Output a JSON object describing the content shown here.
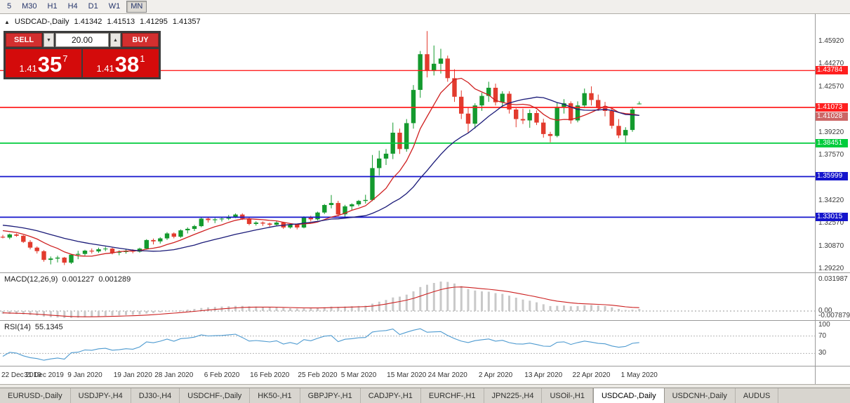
{
  "toolbar": {
    "timeframes": [
      "5",
      "M30",
      "H1",
      "H4",
      "D1",
      "W1",
      "MN"
    ],
    "active": "MN"
  },
  "icons": {
    "panel_toggle": "▲",
    "step_down": "▼",
    "step_up": "▲"
  },
  "chart_header": {
    "symbol_label": "USDCAD-,Daily",
    "open": "1.41342",
    "high": "1.41513",
    "low": "1.41295",
    "close": "1.41357"
  },
  "trade_panel": {
    "sell_label": "SELL",
    "buy_label": "BUY",
    "volume": "20.00",
    "sell_price": {
      "prefix": "1.41",
      "big": "35",
      "sup": "7"
    },
    "buy_price": {
      "prefix": "1.41",
      "big": "38",
      "sup": "1"
    }
  },
  "macd_panel": {
    "name": "MACD(12,26,9)",
    "main_value": "0.001227",
    "signal_value": "0.001289",
    "axis": [
      "0.031987",
      "0.00",
      "-0.007879"
    ]
  },
  "rsi_panel": {
    "name": "RSI(14)",
    "value": "55.1345",
    "axis": [
      "100",
      "70",
      "30"
    ]
  },
  "chart_data": {
    "type": "candlestick",
    "symbol": "USDCAD",
    "timeframe": "Daily",
    "y_axis_labels": [
      "1.45920",
      "1.44270",
      "1.42570",
      "1.40920",
      "1.39220",
      "1.37570",
      "1.35920",
      "1.34220",
      "1.32570",
      "1.30870",
      "1.29220"
    ],
    "x_labels": [
      {
        "text": "22 Dec 2019",
        "i": 0
      },
      {
        "text": "31 Dec 2019",
        "i": 6
      },
      {
        "text": "9 Jan 2020",
        "i": 12
      },
      {
        "text": "19 Jan 2020",
        "i": 19
      },
      {
        "text": "28 Jan 2020",
        "i": 25
      },
      {
        "text": "6 Feb 2020",
        "i": 32
      },
      {
        "text": "16 Feb 2020",
        "i": 39
      },
      {
        "text": "25 Feb 2020",
        "i": 46
      },
      {
        "text": "5 Mar 2020",
        "i": 52
      },
      {
        "text": "15 Mar 2020",
        "i": 59
      },
      {
        "text": "24 Mar 2020",
        "i": 65
      },
      {
        "text": "2 Apr 2020",
        "i": 72
      },
      {
        "text": "13 Apr 2020",
        "i": 79
      },
      {
        "text": "22 Apr 2020",
        "i": 86
      },
      {
        "text": "1 May 2020",
        "i": 93
      }
    ],
    "levels": [
      {
        "price": 1.43784,
        "color": "#ff1f1f",
        "tag": "1.43784",
        "w": 1.4
      },
      {
        "price": 1.41073,
        "color": "#ff1f1f",
        "tag": "1.41073",
        "w": 1.8
      },
      {
        "price": 1.41028,
        "color": "#cc6666",
        "tag": "1.41028",
        "tag_only": true,
        "tag_dy": 12
      },
      {
        "price": 1.38451,
        "color": "#00cc3c",
        "tag": "1.38451",
        "w": 1.8
      },
      {
        "price": 1.35999,
        "color": "#1414cc",
        "tag": "1.35999",
        "w": 1.8
      },
      {
        "price": 1.33015,
        "color": "#1414cc",
        "tag": "1.33015",
        "w": 1.8
      }
    ],
    "ma_fast_period": 8,
    "ma_slow_period": 20,
    "colors": {
      "up": "#149a2e",
      "down": "#e23b2e",
      "ma_fast": "#cf2020",
      "ma_slow": "#1a1a78"
    },
    "seed_closes": [
      1.3288,
      1.3302,
      1.3295,
      1.331,
      1.3318,
      1.3305,
      1.3298,
      1.3285,
      1.3292,
      1.328,
      1.3272,
      1.3265,
      1.3278,
      1.3284,
      1.327,
      1.3255,
      1.3248,
      1.326,
      1.3242,
      1.323,
      1.3218,
      1.3225,
      1.321,
      1.3198,
      1.3205,
      1.3186
    ],
    "candles": [
      [
        1.3158,
        1.3172,
        1.3146,
        1.3152
      ],
      [
        1.3152,
        1.3181,
        1.314,
        1.3175
      ],
      [
        1.3175,
        1.3182,
        1.3158,
        1.3165
      ],
      [
        1.3165,
        1.317,
        1.3112,
        1.312
      ],
      [
        1.312,
        1.3133,
        1.3065,
        1.3078
      ],
      [
        1.3078,
        1.3087,
        1.3035,
        1.3052
      ],
      [
        1.3052,
        1.306,
        1.2975,
        1.2988
      ],
      [
        1.2988,
        1.3013,
        1.2955,
        1.2998
      ],
      [
        1.2998,
        1.3019,
        1.297,
        1.3005
      ],
      [
        1.3005,
        1.301,
        1.295,
        1.2968
      ],
      [
        1.2968,
        1.3032,
        1.2958,
        1.3026
      ],
      [
        1.3026,
        1.3055,
        1.2993,
        1.3032
      ],
      [
        1.3032,
        1.3062,
        1.302,
        1.3056
      ],
      [
        1.3056,
        1.3072,
        1.3035,
        1.305
      ],
      [
        1.305,
        1.3078,
        1.304,
        1.3066
      ],
      [
        1.3066,
        1.3085,
        1.3052,
        1.3071
      ],
      [
        1.3071,
        1.3078,
        1.3028,
        1.3041
      ],
      [
        1.3041,
        1.3058,
        1.3022,
        1.3046
      ],
      [
        1.3046,
        1.307,
        1.3034,
        1.3056
      ],
      [
        1.3056,
        1.3066,
        1.3037,
        1.3049
      ],
      [
        1.3049,
        1.3078,
        1.3042,
        1.3071
      ],
      [
        1.3071,
        1.314,
        1.3063,
        1.3134
      ],
      [
        1.3134,
        1.3145,
        1.3102,
        1.3124
      ],
      [
        1.3124,
        1.3155,
        1.3108,
        1.3146
      ],
      [
        1.3146,
        1.3192,
        1.3135,
        1.3182
      ],
      [
        1.3182,
        1.319,
        1.3146,
        1.3158
      ],
      [
        1.3158,
        1.3212,
        1.315,
        1.3205
      ],
      [
        1.3205,
        1.3227,
        1.3182,
        1.3216
      ],
      [
        1.3216,
        1.3245,
        1.32,
        1.3236
      ],
      [
        1.3236,
        1.3302,
        1.3228,
        1.3291
      ],
      [
        1.3291,
        1.3304,
        1.3262,
        1.328
      ],
      [
        1.328,
        1.3296,
        1.3258,
        1.3286
      ],
      [
        1.3286,
        1.33,
        1.327,
        1.3291
      ],
      [
        1.3291,
        1.3318,
        1.328,
        1.3306
      ],
      [
        1.3306,
        1.3329,
        1.3295,
        1.3321
      ],
      [
        1.3321,
        1.333,
        1.3281,
        1.3291
      ],
      [
        1.3291,
        1.33,
        1.3242,
        1.3252
      ],
      [
        1.3252,
        1.3272,
        1.324,
        1.3262
      ],
      [
        1.3262,
        1.327,
        1.3238,
        1.3255
      ],
      [
        1.3255,
        1.3262,
        1.3232,
        1.3246
      ],
      [
        1.3246,
        1.3272,
        1.3236,
        1.3262
      ],
      [
        1.3262,
        1.3268,
        1.3215,
        1.3226
      ],
      [
        1.3226,
        1.3255,
        1.3218,
        1.3247
      ],
      [
        1.3247,
        1.3254,
        1.3212,
        1.3226
      ],
      [
        1.3226,
        1.3308,
        1.322,
        1.3301
      ],
      [
        1.3301,
        1.3312,
        1.327,
        1.3286
      ],
      [
        1.3286,
        1.3342,
        1.3278,
        1.3336
      ],
      [
        1.3336,
        1.3398,
        1.3325,
        1.3391
      ],
      [
        1.3391,
        1.3464,
        1.3366,
        1.3406
      ],
      [
        1.3406,
        1.3422,
        1.3308,
        1.3322
      ],
      [
        1.3322,
        1.3392,
        1.3302,
        1.3381
      ],
      [
        1.3381,
        1.3404,
        1.3355,
        1.3396
      ],
      [
        1.3396,
        1.3428,
        1.3382,
        1.3421
      ],
      [
        1.3421,
        1.3466,
        1.3402,
        1.3428
      ],
      [
        1.3428,
        1.3758,
        1.342,
        1.3662
      ],
      [
        1.3662,
        1.379,
        1.3608,
        1.3732
      ],
      [
        1.3732,
        1.3802,
        1.3685,
        1.3768
      ],
      [
        1.3768,
        1.3996,
        1.3728,
        1.3922
      ],
      [
        1.3922,
        1.3952,
        1.3766,
        1.3802
      ],
      [
        1.3802,
        1.4022,
        1.3782,
        1.3992
      ],
      [
        1.3992,
        1.4272,
        1.3952,
        1.4236
      ],
      [
        1.4236,
        1.4522,
        1.4178,
        1.4498
      ],
      [
        1.4498,
        1.4668,
        1.4328,
        1.4375
      ],
      [
        1.4375,
        1.4562,
        1.4342,
        1.4428
      ],
      [
        1.4428,
        1.4538,
        1.4356,
        1.4466
      ],
      [
        1.4466,
        1.4488,
        1.4296,
        1.4322
      ],
      [
        1.4322,
        1.4388,
        1.4148,
        1.4186
      ],
      [
        1.4186,
        1.4232,
        1.4022,
        1.4062
      ],
      [
        1.4062,
        1.4108,
        1.3922,
        1.3988
      ],
      [
        1.3988,
        1.4138,
        1.3952,
        1.4122
      ],
      [
        1.4122,
        1.4214,
        1.4082,
        1.4192
      ],
      [
        1.4192,
        1.4296,
        1.4148,
        1.4252
      ],
      [
        1.4252,
        1.4282,
        1.4122,
        1.4146
      ],
      [
        1.4146,
        1.4226,
        1.4108,
        1.4208
      ],
      [
        1.4208,
        1.4226,
        1.4062,
        1.4092
      ],
      [
        1.4092,
        1.4102,
        1.3962,
        1.4022
      ],
      [
        1.4022,
        1.4098,
        1.3986,
        1.4012
      ],
      [
        1.4012,
        1.4092,
        1.3958,
        1.4066
      ],
      [
        1.4066,
        1.4086,
        1.3978,
        1.3996
      ],
      [
        1.3996,
        1.4024,
        1.3886,
        1.3912
      ],
      [
        1.3912,
        1.3928,
        1.3852,
        1.3898
      ],
      [
        1.3898,
        1.4142,
        1.3888,
        1.4112
      ],
      [
        1.4112,
        1.4168,
        1.4062,
        1.4138
      ],
      [
        1.4138,
        1.4152,
        1.3988,
        1.4012
      ],
      [
        1.4012,
        1.4152,
        1.3998,
        1.4122
      ],
      [
        1.4122,
        1.4246,
        1.4102,
        1.4212
      ],
      [
        1.4212,
        1.4262,
        1.4122,
        1.4162
      ],
      [
        1.4162,
        1.4202,
        1.4082,
        1.4102
      ],
      [
        1.4102,
        1.4148,
        1.4042,
        1.4082
      ],
      [
        1.4082,
        1.4102,
        1.3952,
        1.3972
      ],
      [
        1.3972,
        1.4022,
        1.3882,
        1.3902
      ],
      [
        1.3902,
        1.3962,
        1.3852,
        1.3942
      ],
      [
        1.3942,
        1.4112,
        1.3928,
        1.4092
      ],
      [
        1.41342,
        1.41513,
        1.41295,
        1.41357
      ]
    ]
  },
  "tabs": {
    "items": [
      "EURUSD-,Daily",
      "USDJPY-,H4",
      "DJ30-,H4",
      "USDCHF-,Daily",
      "HK50-,H1",
      "GBPJPY-,H1",
      "CADJPY-,H1",
      "EURCHF-,H1",
      "JPN225-,H4",
      "USOil-,H1",
      "USDCAD-,Daily",
      "USDCNH-,Daily",
      "AUDUS"
    ],
    "active_index": 10
  }
}
